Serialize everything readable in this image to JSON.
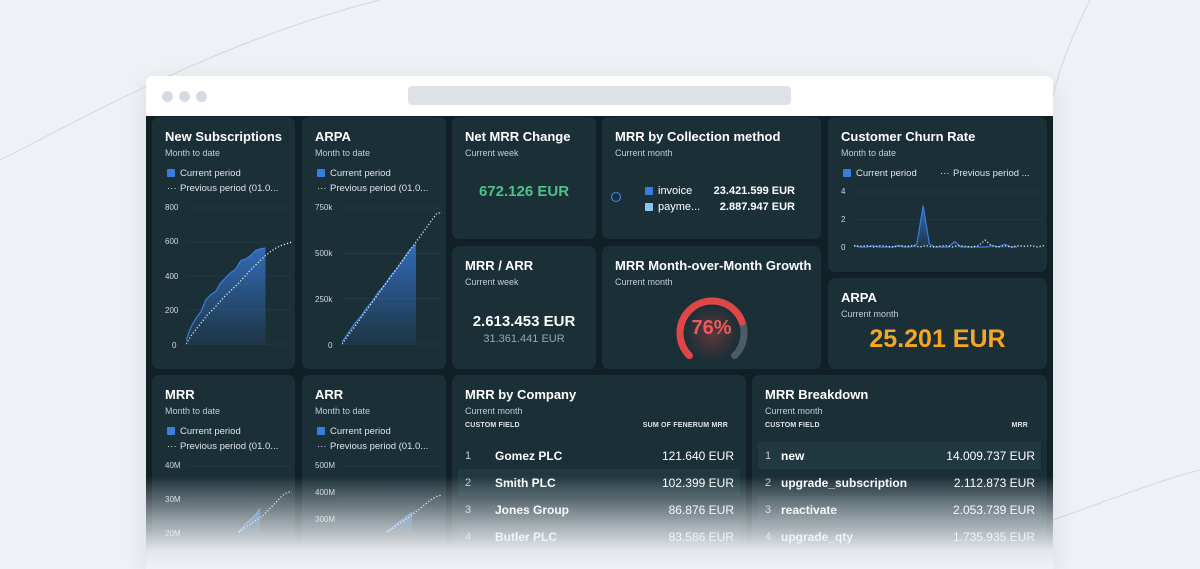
{
  "colors": {
    "page_bg": "#eef1f5",
    "dashboard_bg": "#102026",
    "card_bg": "#1b2f37",
    "series_blue": "#3a7de0",
    "positive_green": "#4cc38a",
    "accent_orange": "#f5a623",
    "gauge_red": "#e04646",
    "gauge_track": "#4c5c66"
  },
  "legend": {
    "current": "Current period",
    "previous_short": "Previous period (01.0...",
    "previous_tiny": "Previous period ..."
  },
  "widgets": {
    "new_subscriptions": {
      "title": "New Subscriptions",
      "subtitle": "Month to date",
      "chart_data": {
        "type": "area",
        "title": "New Subscriptions",
        "y_ticks": [
          "800",
          "600",
          "400",
          "200",
          "0"
        ],
        "ylim": [
          0,
          800
        ],
        "series": [
          {
            "name": "Current period",
            "style": "area",
            "values": [
              20,
              100,
              150,
              190,
              260,
              290,
              310,
              360,
              390,
              420,
              440,
              490,
              500,
              520,
              550,
              560,
              565
            ]
          },
          {
            "name": "Previous period (01.0...",
            "style": "dotted",
            "values": [
              0,
              50,
              90,
              130,
              170,
              200,
              235,
              270,
              300,
              330,
              360,
              395,
              430,
              460,
              490,
              520,
              545,
              565,
              580,
              590,
              600
            ]
          }
        ]
      }
    },
    "arpa_chart": {
      "title": "ARPA",
      "subtitle": "Month to date",
      "chart_data": {
        "type": "area",
        "title": "ARPA",
        "y_ticks": [
          "750k",
          "500k",
          "250k",
          "0"
        ],
        "ylim": [
          0,
          750000
        ],
        "series": [
          {
            "name": "Current period",
            "style": "area",
            "values": [
              10000,
              60000,
              110000,
              150000,
              200000,
              240000,
              290000,
              330000,
              380000,
              420000,
              470000,
              520000,
              550000
            ]
          },
          {
            "name": "Previous period (01.0...",
            "style": "dotted",
            "values": [
              0,
              40000,
              80000,
              120000,
              160000,
              200000,
              240000,
              280000,
              320000,
              360000,
              400000,
              440000,
              480000,
              520000,
              560000,
              600000,
              640000,
              680000,
              720000,
              725000
            ]
          }
        ]
      }
    },
    "net_mrr_change": {
      "title": "Net MRR Change",
      "subtitle": "Current week",
      "value": "672.126 EUR"
    },
    "mrr_by_collection": {
      "title": "MRR by Collection method",
      "subtitle": "Current month",
      "chart_data": {
        "type": "pie",
        "title": "MRR by Collection method",
        "slices": [
          {
            "label": "invoice",
            "value": "23.421.599 EUR",
            "color": "#3a7de0"
          },
          {
            "label": "payme...",
            "value": "2.887.947 EUR",
            "color": "#8dc4f0"
          }
        ]
      }
    },
    "customer_churn": {
      "title": "Customer Churn Rate",
      "subtitle": "Month to date",
      "chart_data": {
        "type": "area",
        "title": "Customer Churn Rate",
        "y_ticks": [
          "4",
          "2",
          "0"
        ],
        "ylim": [
          0,
          4
        ],
        "series": [
          {
            "name": "Current period",
            "style": "area",
            "values": [
              0.1,
              0,
              0,
              0.1,
              0,
              0,
              0,
              0.1,
              0,
              0,
              0.2,
              3.0,
              0.2,
              0,
              0,
              0,
              0.4,
              0,
              0,
              0,
              0,
              0,
              0.1,
              0,
              0.2,
              0,
              0
            ]
          },
          {
            "name": "Previous period ...",
            "style": "dotted",
            "values": [
              0.1,
              0.05,
              0.1,
              0,
              0.1,
              0.05,
              0,
              0.1,
              0.05,
              0.1,
              0,
              0.1,
              0,
              0.05,
              0.1,
              0,
              0.1,
              0.05,
              0,
              0.1,
              0.5,
              0.1,
              0,
              0.1,
              0,
              0.1,
              0.05,
              0.1,
              0,
              0.1
            ]
          }
        ]
      }
    },
    "mrr_arr": {
      "title": "MRR / ARR",
      "subtitle": "Current week",
      "value": "2.613.453 EUR",
      "secondary": "31.361.441 EUR"
    },
    "mrr_growth": {
      "title": "MRR Month-over-Month Growth",
      "subtitle": "Current month",
      "value": "76%",
      "fraction": 0.76
    },
    "arpa_kpi": {
      "title": "ARPA",
      "subtitle": "Current month",
      "value": "25.201 EUR"
    },
    "mrr_chart": {
      "title": "MRR",
      "subtitle": "Month to date",
      "chart_data": {
        "type": "area",
        "title": "MRR",
        "y_ticks": [
          "40M",
          "30M",
          "20M"
        ],
        "ylim": [
          20000000,
          40000000
        ],
        "series": [
          {
            "name": "Current period",
            "style": "area",
            "values": [
              20000000,
              22000000,
              23500000,
              25000000,
              27000000
            ]
          },
          {
            "name": "Previous period (01.0...",
            "style": "dotted",
            "values": [
              20000000,
              21000000,
              22000000,
              23000000,
              24000000,
              25000000,
              26500000,
              28000000,
              29500000,
              31000000,
              32000000,
              32200000
            ]
          }
        ]
      }
    },
    "arr_chart": {
      "title": "ARR",
      "subtitle": "Month to date",
      "chart_data": {
        "type": "area",
        "title": "ARR",
        "y_ticks": [
          "500M",
          "400M",
          "300M"
        ],
        "ylim": [
          250000000,
          500000000
        ],
        "series": [
          {
            "name": "Current period",
            "style": "area",
            "values": [
              250000000,
              270000000,
              290000000,
              305000000,
              325000000
            ]
          },
          {
            "name": "Previous period (01.0...",
            "style": "dotted",
            "values": [
              250000000,
              262000000,
              275000000,
              288000000,
              300000000,
              315000000,
              330000000,
              345000000,
              360000000,
              375000000,
              385000000,
              390000000
            ]
          }
        ]
      }
    },
    "mrr_by_company": {
      "title": "MRR by Company",
      "subtitle": "Current month",
      "col1": "CUSTOM FIELD",
      "col2": "SUM OF FENERUM MRR",
      "rows": [
        {
          "n": "1",
          "name": "Gomez PLC",
          "value": "121.640 EUR"
        },
        {
          "n": "2",
          "name": "Smith PLC",
          "value": "102.399 EUR"
        },
        {
          "n": "3",
          "name": "Jones Group",
          "value": "86.876 EUR"
        },
        {
          "n": "4",
          "name": "Butler PLC",
          "value": "83.586 EUR"
        }
      ]
    },
    "mrr_breakdown": {
      "title": "MRR Breakdown",
      "subtitle": "Current month",
      "col1": "CUSTOM FIELD",
      "col2": "MRR",
      "rows": [
        {
          "n": "1",
          "name": "new",
          "value": "14.009.737 EUR"
        },
        {
          "n": "2",
          "name": "upgrade_subscription",
          "value": "2.112.873 EUR"
        },
        {
          "n": "3",
          "name": "reactivate",
          "value": "2.053.739 EUR"
        },
        {
          "n": "4",
          "name": "upgrade_qty",
          "value": "1.735.935 EUR"
        }
      ]
    }
  }
}
